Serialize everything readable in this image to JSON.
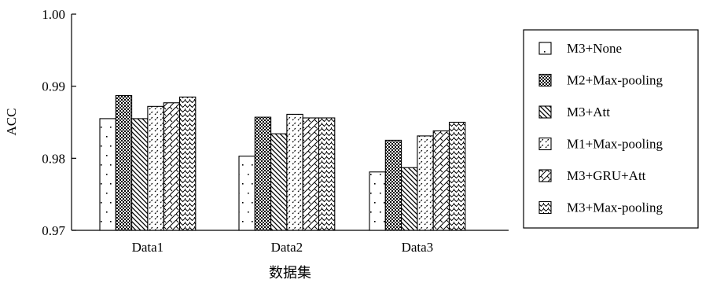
{
  "chart_data": {
    "type": "bar",
    "categories": [
      "Data1",
      "Data2",
      "Data3"
    ],
    "series": [
      {
        "name": "M3+None",
        "pattern": "dots",
        "values": [
          0.9855,
          0.9803,
          0.9781
        ]
      },
      {
        "name": "M2+Max-pooling",
        "pattern": "checker",
        "values": [
          0.9887,
          0.9857,
          0.9825
        ]
      },
      {
        "name": "M3+Att",
        "pattern": "backslash",
        "values": [
          0.9855,
          0.9834,
          0.9787
        ]
      },
      {
        "name": "M1+Max-pooling",
        "pattern": "slash",
        "values": [
          0.9872,
          0.9861,
          0.9831
        ]
      },
      {
        "name": "M3+GRU+Att",
        "pattern": "zigzag",
        "values": [
          0.9877,
          0.9856,
          0.9838
        ]
      },
      {
        "name": "M3+Max-pooling",
        "pattern": "wave",
        "values": [
          0.9885,
          0.9856,
          0.985
        ]
      }
    ],
    "xlabel": "数据集",
    "ylabel": "ACC",
    "ylim": [
      0.97,
      1.0
    ],
    "yticks": [
      "0.97",
      "0.98",
      "0.99",
      "1.00"
    ],
    "legend_position": "right",
    "grid": false
  }
}
